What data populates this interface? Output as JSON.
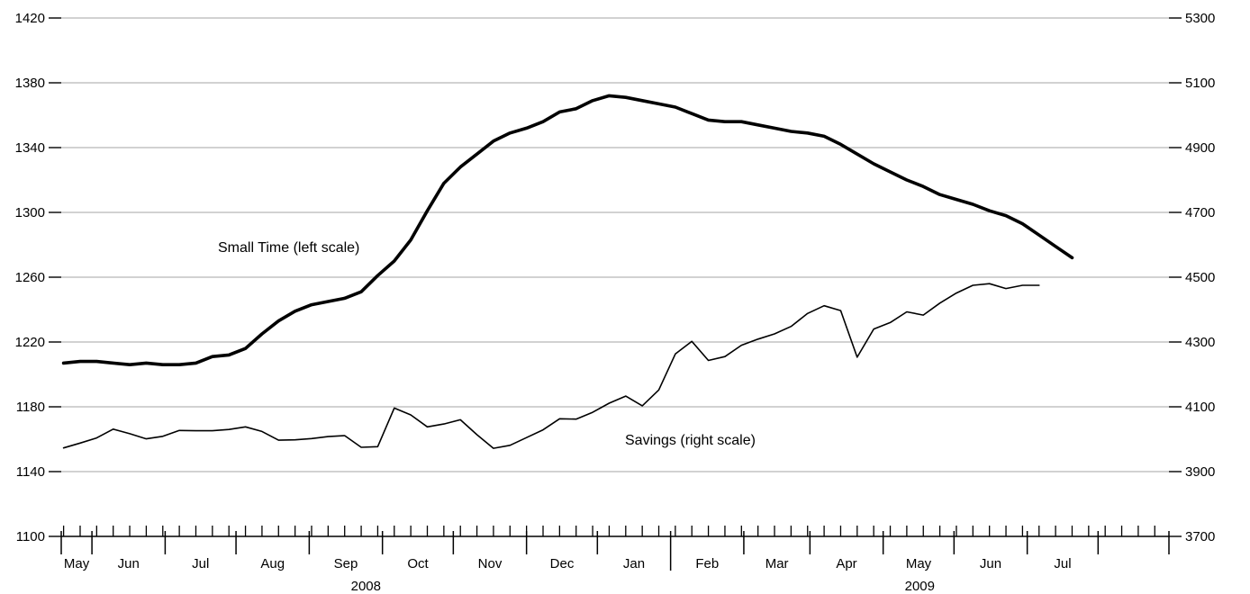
{
  "chart_data": {
    "type": "line",
    "grid": true,
    "y_left": {
      "ylim": [
        1100,
        1420
      ],
      "ticks": [
        "1100",
        "1140",
        "1180",
        "1220",
        "1260",
        "1300",
        "1340",
        "1380",
        "1420"
      ]
    },
    "y_right": {
      "ylim": [
        3700,
        5300
      ],
      "ticks": [
        "3700",
        "3900",
        "4100",
        "4300",
        "4500",
        "4700",
        "4900",
        "5100",
        "5300"
      ]
    },
    "x": {
      "xlim": [
        "2008-04-18",
        "2009-07-31"
      ],
      "months": [
        "May",
        "Jun",
        "Jul",
        "Aug",
        "Sep",
        "Oct",
        "Nov",
        "Dec",
        "Jan",
        "Feb",
        "Mar",
        "Apr",
        "May",
        "Jun",
        "Jul"
      ],
      "years": [
        "2008",
        "2009"
      ]
    },
    "series": [
      {
        "name": "Small Time (left scale)",
        "axis": "left",
        "x": [
          "2008-04-19",
          "2008-04-26",
          "2008-05-03",
          "2008-05-10",
          "2008-05-17",
          "2008-05-24",
          "2008-05-31",
          "2008-06-07",
          "2008-06-14",
          "2008-06-21",
          "2008-06-28",
          "2008-07-05",
          "2008-07-12",
          "2008-07-19",
          "2008-07-26",
          "2008-08-02",
          "2008-08-09",
          "2008-08-16",
          "2008-08-23",
          "2008-08-30",
          "2008-09-06",
          "2008-09-13",
          "2008-09-20",
          "2008-09-27",
          "2008-10-04",
          "2008-10-11",
          "2008-10-18",
          "2008-10-25",
          "2008-11-01",
          "2008-11-08",
          "2008-11-15",
          "2008-11-22",
          "2008-11-29",
          "2008-12-06",
          "2008-12-13",
          "2008-12-20",
          "2008-12-27",
          "2009-01-03",
          "2009-01-10",
          "2009-01-17",
          "2009-01-24",
          "2009-01-31",
          "2009-02-07",
          "2009-02-14",
          "2009-02-21",
          "2009-02-28",
          "2009-03-07",
          "2009-03-14",
          "2009-03-21",
          "2009-03-28",
          "2009-04-04",
          "2009-04-11",
          "2009-04-18",
          "2009-04-25",
          "2009-05-02",
          "2009-05-09",
          "2009-05-16",
          "2009-05-23",
          "2009-05-30",
          "2009-06-06",
          "2009-06-13",
          "2009-06-20"
        ],
        "values": [
          1207,
          1208,
          1208,
          1207,
          1206,
          1207,
          1206,
          1206,
          1207,
          1211,
          1212,
          1216,
          1225,
          1233,
          1239,
          1243,
          1245,
          1247,
          1251,
          1261,
          1270,
          1283,
          1301,
          1318,
          1328,
          1336,
          1344,
          1349,
          1352,
          1356,
          1362,
          1364,
          1369,
          1372,
          1371,
          1369,
          1367,
          1365,
          1361,
          1357,
          1356,
          1356,
          1354,
          1352,
          1350,
          1349,
          1347,
          1342,
          1336,
          1330,
          1325,
          1320,
          1316,
          1311,
          1308,
          1305,
          1301,
          1298,
          1293,
          1286,
          1279,
          1272
        ]
      },
      {
        "name": "Savings (right scale)",
        "axis": "right",
        "x": [
          "2008-04-19",
          "2008-04-26",
          "2008-05-03",
          "2008-05-10",
          "2008-05-17",
          "2008-05-24",
          "2008-05-31",
          "2008-06-07",
          "2008-06-14",
          "2008-06-21",
          "2008-06-28",
          "2008-07-05",
          "2008-07-12",
          "2008-07-19",
          "2008-07-26",
          "2008-08-02",
          "2008-08-09",
          "2008-08-16",
          "2008-08-23",
          "2008-08-30",
          "2008-09-06",
          "2008-09-13",
          "2008-09-20",
          "2008-09-27",
          "2008-10-04",
          "2008-10-11",
          "2008-10-18",
          "2008-10-25",
          "2008-11-01",
          "2008-11-08",
          "2008-11-15",
          "2008-11-22",
          "2008-11-29",
          "2008-12-06",
          "2008-12-13",
          "2008-12-20",
          "2008-12-27",
          "2009-01-03",
          "2009-01-10",
          "2009-01-17",
          "2009-01-24",
          "2009-01-31",
          "2009-02-07",
          "2009-02-14",
          "2009-02-21",
          "2009-02-28",
          "2009-03-07",
          "2009-03-14",
          "2009-03-21",
          "2009-03-28",
          "2009-04-04",
          "2009-04-11",
          "2009-04-18",
          "2009-04-25",
          "2009-05-02",
          "2009-05-09",
          "2009-05-16",
          "2009-05-23",
          "2009-05-30",
          "2009-06-06"
        ],
        "values": [
          3973,
          3988,
          4004,
          4031,
          4017,
          4001,
          4009,
          4027,
          4026,
          4026,
          4030,
          4038,
          4024,
          3997,
          3998,
          4002,
          4008,
          4011,
          3975,
          3977,
          4096,
          4075,
          4038,
          4047,
          4060,
          4014,
          3972,
          3981,
          4005,
          4029,
          4063,
          4062,
          4083,
          4111,
          4133,
          4103,
          4152,
          4263,
          4302,
          4243,
          4255,
          4290,
          4309,
          4325,
          4348,
          4388,
          4412,
          4397,
          4253,
          4340,
          4360,
          4393,
          4383,
          4420,
          4451,
          4475,
          4480,
          4465,
          4475,
          4475
        ]
      }
    ]
  }
}
